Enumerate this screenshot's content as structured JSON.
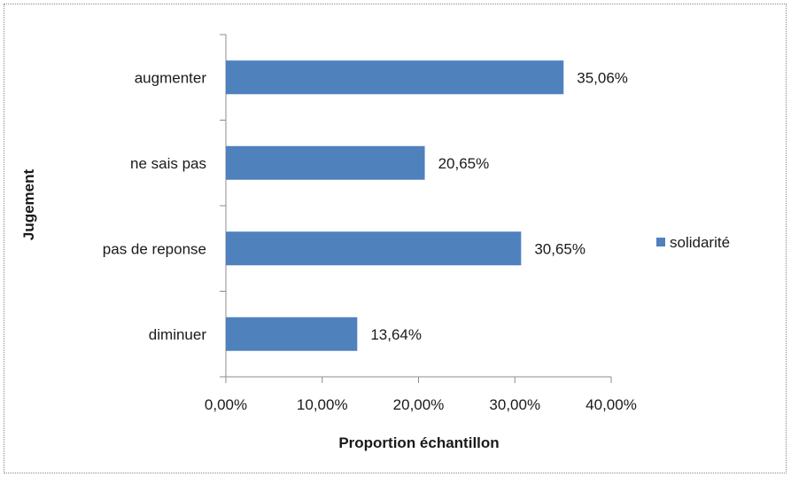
{
  "chart_data": {
    "type": "bar",
    "orientation": "horizontal",
    "categories": [
      "augmenter",
      "ne sais pas",
      "pas de reponse",
      "diminuer"
    ],
    "series": [
      {
        "name": "solidarité",
        "values": [
          35.06,
          20.65,
          30.65,
          13.64
        ],
        "labels": [
          "35,06%",
          "20,65%",
          "30,65%",
          "13,64%"
        ],
        "color": "#4f81bd"
      }
    ],
    "xlabel": "Proportion échantillon",
    "ylabel": "Jugement",
    "xlim": [
      0,
      40
    ],
    "xticks": [
      0,
      10,
      20,
      30,
      40
    ],
    "xtick_labels": [
      "0,00%",
      "10,00%",
      "20,00%",
      "30,00%",
      "40,00%"
    ],
    "grid": false,
    "legend_position": "right"
  }
}
